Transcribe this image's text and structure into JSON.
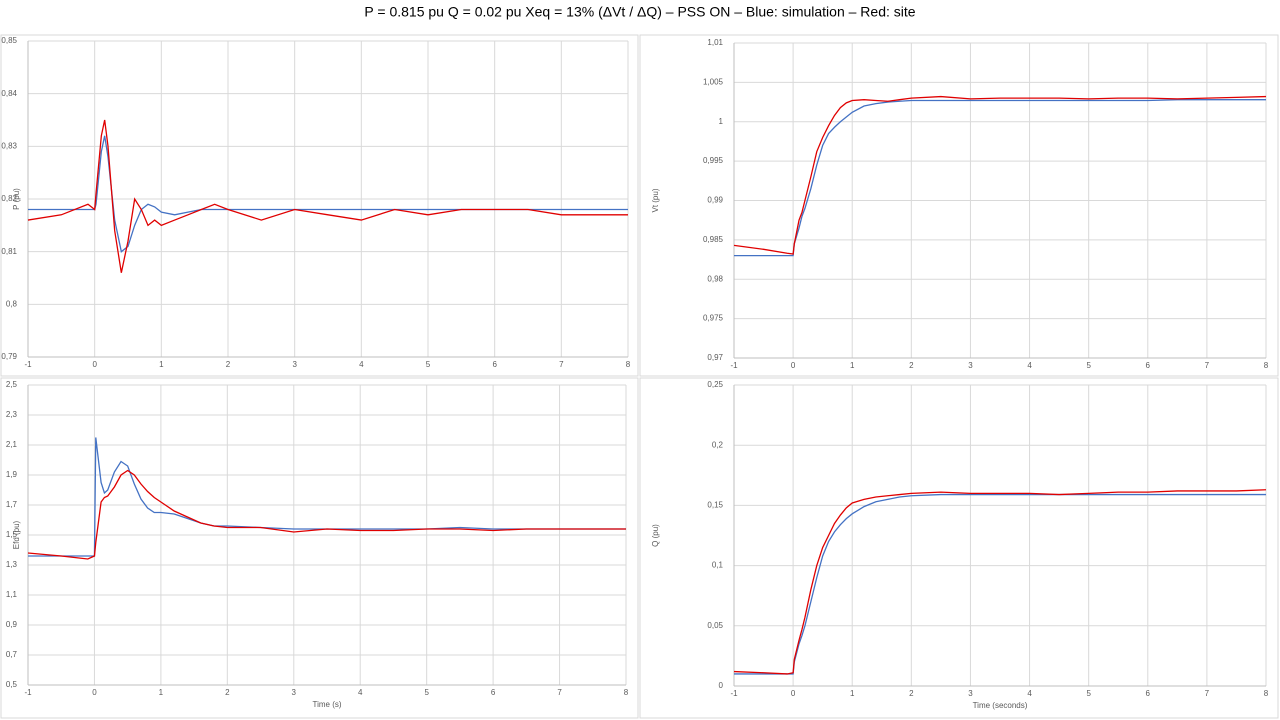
{
  "title": "P = 0.815 pu Q = 0.02 pu Xeq = 13% (ΔVt / ΔQ) – PSS ON – Blue: simulation – Red: site",
  "chart_data": [
    {
      "type": "line",
      "ylabel": "P (pu)",
      "x": [
        -1,
        -0.5,
        -0.1,
        0,
        0.02,
        0.1,
        0.15,
        0.2,
        0.3,
        0.4,
        0.5,
        0.6,
        0.7,
        0.8,
        0.9,
        1,
        1.2,
        1.4,
        1.6,
        1.8,
        2,
        2.5,
        3,
        3.5,
        4,
        4.5,
        5,
        5.5,
        6,
        6.5,
        7,
        7.5,
        8
      ],
      "series": [
        {
          "color": "#4472c4",
          "values": [
            0.818,
            0.818,
            0.818,
            0.818,
            0.819,
            0.829,
            0.832,
            0.828,
            0.816,
            0.81,
            0.811,
            0.815,
            0.818,
            0.819,
            0.8185,
            0.8175,
            0.817,
            0.8175,
            0.818,
            0.818,
            0.818,
            0.818,
            0.818,
            0.818,
            0.818,
            0.818,
            0.818,
            0.818,
            0.818,
            0.818,
            0.818,
            0.818,
            0.818
          ]
        },
        {
          "color": "#e00000",
          "values": [
            0.816,
            0.817,
            0.819,
            0.818,
            0.821,
            0.832,
            0.835,
            0.83,
            0.814,
            0.806,
            0.812,
            0.82,
            0.818,
            0.815,
            0.816,
            0.815,
            0.816,
            0.817,
            0.818,
            0.819,
            0.818,
            0.816,
            0.818,
            0.817,
            0.816,
            0.818,
            0.817,
            0.818,
            0.818,
            0.818,
            0.817,
            0.817,
            0.817
          ]
        }
      ],
      "xlim": [
        -1,
        8
      ],
      "xticks": [
        -1,
        0,
        1,
        2,
        3,
        4,
        5,
        6,
        7,
        8
      ],
      "ylim": [
        0.79,
        0.85
      ],
      "yticks": [
        {
          "value": 0.79,
          "label": "0,79"
        },
        {
          "value": 0.8,
          "label": "0,8"
        },
        {
          "value": 0.81,
          "label": "0,81"
        },
        {
          "value": 0.82,
          "label": "0,82"
        },
        {
          "value": 0.83,
          "label": "0,83"
        },
        {
          "value": 0.84,
          "label": "0,84"
        },
        {
          "value": 0.85,
          "label": "0,85"
        }
      ],
      "grid": true
    },
    {
      "type": "line",
      "ylabel": "Vt (pu)",
      "x": [
        -1,
        -0.5,
        -0.1,
        0,
        0.02,
        0.1,
        0.15,
        0.2,
        0.3,
        0.4,
        0.5,
        0.6,
        0.7,
        0.8,
        0.9,
        1,
        1.2,
        1.4,
        1.6,
        1.8,
        2,
        2.5,
        3,
        3.5,
        4,
        4.5,
        5,
        5.5,
        6,
        6.5,
        7,
        7.5,
        8
      ],
      "series": [
        {
          "color": "#4472c4",
          "values": [
            0.983,
            0.983,
            0.983,
            0.983,
            0.9845,
            0.9865,
            0.988,
            0.989,
            0.9915,
            0.9945,
            0.997,
            0.9985,
            0.9993,
            1,
            1.0006,
            1.0012,
            1.002,
            1.0023,
            1.0025,
            1.0026,
            1.0027,
            1.0027,
            1.0027,
            1.0027,
            1.0027,
            1.0027,
            1.0027,
            1.0027,
            1.0027,
            1.0028,
            1.0028,
            1.0028,
            1.0028
          ]
        },
        {
          "color": "#e00000",
          "values": [
            0.9843,
            0.9838,
            0.9833,
            0.9832,
            0.9845,
            0.9875,
            0.9885,
            0.99,
            0.993,
            0.9962,
            0.998,
            0.9995,
            1.0008,
            1.0018,
            1.0024,
            1.0027,
            1.0028,
            1.0027,
            1.0026,
            1.0028,
            1.003,
            1.0032,
            1.0029,
            1.003,
            1.003,
            1.003,
            1.0029,
            1.003,
            1.003,
            1.0029,
            1.003,
            1.0031,
            1.0032
          ]
        }
      ],
      "xlim": [
        -1,
        8
      ],
      "xticks": [
        -1,
        0,
        1,
        2,
        3,
        4,
        5,
        6,
        7,
        8
      ],
      "ylim": [
        0.97,
        1.01
      ],
      "yticks": [
        {
          "value": 0.97,
          "label": "0,97"
        },
        {
          "value": 0.975,
          "label": "0,975"
        },
        {
          "value": 0.98,
          "label": "0,98"
        },
        {
          "value": 0.985,
          "label": "0,985"
        },
        {
          "value": 0.99,
          "label": "0,99"
        },
        {
          "value": 0.995,
          "label": "0,995"
        },
        1,
        {
          "value": 1.005,
          "label": "1,005"
        },
        {
          "value": 1.01,
          "label": "1,01"
        }
      ],
      "grid": true
    },
    {
      "type": "line",
      "ylabel": "Efd (pu)",
      "xlabel": "Time (s)",
      "x": [
        -1,
        -0.5,
        -0.1,
        0,
        0.02,
        0.1,
        0.15,
        0.2,
        0.3,
        0.4,
        0.5,
        0.6,
        0.7,
        0.8,
        0.9,
        1,
        1.2,
        1.4,
        1.6,
        1.8,
        2,
        2.5,
        3,
        3.5,
        4,
        4.5,
        5,
        5.5,
        6,
        6.5,
        7,
        7.5,
        8
      ],
      "series": [
        {
          "color": "#4472c4",
          "values": [
            1.36,
            1.36,
            1.36,
            1.36,
            2.15,
            1.85,
            1.78,
            1.8,
            1.92,
            1.99,
            1.96,
            1.84,
            1.74,
            1.68,
            1.65,
            1.65,
            1.64,
            1.61,
            1.58,
            1.56,
            1.56,
            1.55,
            1.54,
            1.54,
            1.54,
            1.54,
            1.54,
            1.55,
            1.54,
            1.54,
            1.54,
            1.54,
            1.54
          ]
        },
        {
          "color": "#e00000",
          "values": [
            1.38,
            1.36,
            1.34,
            1.36,
            1.45,
            1.72,
            1.75,
            1.76,
            1.82,
            1.9,
            1.93,
            1.9,
            1.84,
            1.79,
            1.75,
            1.72,
            1.66,
            1.62,
            1.58,
            1.56,
            1.55,
            1.55,
            1.52,
            1.54,
            1.53,
            1.53,
            1.54,
            1.54,
            1.53,
            1.54,
            1.54,
            1.54,
            1.54
          ]
        }
      ],
      "xlim": [
        -1,
        8
      ],
      "xticks": [
        -1,
        0,
        1,
        2,
        3,
        4,
        5,
        6,
        7,
        8
      ],
      "ylim": [
        0.5,
        2.5
      ],
      "yticks": [
        {
          "value": 0.5,
          "label": "0,5"
        },
        {
          "value": 0.7,
          "label": "0,7"
        },
        {
          "value": 0.9,
          "label": "0,9"
        },
        {
          "value": 1.1,
          "label": "1,1"
        },
        {
          "value": 1.3,
          "label": "1,3"
        },
        {
          "value": 1.5,
          "label": "1,5"
        },
        {
          "value": 1.7,
          "label": "1,7"
        },
        {
          "value": 1.9,
          "label": "1,9"
        },
        {
          "value": 2.1,
          "label": "2,1"
        },
        {
          "value": 2.3,
          "label": "2,3"
        },
        {
          "value": 2.5,
          "label": "2,5"
        }
      ],
      "grid": true
    },
    {
      "type": "line",
      "ylabel": "Q (pu)",
      "xlabel": "Time (seconds)",
      "x": [
        -1,
        -0.5,
        -0.1,
        0,
        0.02,
        0.1,
        0.15,
        0.2,
        0.3,
        0.4,
        0.5,
        0.6,
        0.7,
        0.8,
        0.9,
        1,
        1.2,
        1.4,
        1.6,
        1.8,
        2,
        2.5,
        3,
        3.5,
        4,
        4.5,
        5,
        5.5,
        6,
        6.5,
        7,
        7.5,
        8
      ],
      "series": [
        {
          "color": "#4472c4",
          "values": [
            0.01,
            0.01,
            0.01,
            0.01,
            0.02,
            0.035,
            0.042,
            0.05,
            0.07,
            0.09,
            0.108,
            0.12,
            0.128,
            0.134,
            0.139,
            0.143,
            0.149,
            0.153,
            0.155,
            0.157,
            0.158,
            0.159,
            0.159,
            0.159,
            0.159,
            0.159,
            0.159,
            0.159,
            0.159,
            0.159,
            0.159,
            0.159,
            0.159
          ]
        },
        {
          "color": "#e00000",
          "values": [
            0.012,
            0.011,
            0.01,
            0.011,
            0.022,
            0.038,
            0.047,
            0.057,
            0.08,
            0.1,
            0.115,
            0.125,
            0.135,
            0.142,
            0.148,
            0.152,
            0.155,
            0.157,
            0.158,
            0.159,
            0.16,
            0.161,
            0.16,
            0.16,
            0.16,
            0.159,
            0.16,
            0.161,
            0.161,
            0.162,
            0.162,
            0.162,
            0.163
          ]
        }
      ],
      "xlim": [
        -1,
        8
      ],
      "xticks": [
        -1,
        0,
        1,
        2,
        3,
        4,
        5,
        6,
        7,
        8
      ],
      "ylim": [
        0,
        0.25
      ],
      "yticks": [
        0,
        {
          "value": 0.05,
          "label": "0,05"
        },
        {
          "value": 0.1,
          "label": "0,1"
        },
        {
          "value": 0.15,
          "label": "0,15"
        },
        {
          "value": 0.2,
          "label": "0,2"
        },
        {
          "value": 0.25,
          "label": "0,25"
        }
      ],
      "grid": true
    }
  ]
}
